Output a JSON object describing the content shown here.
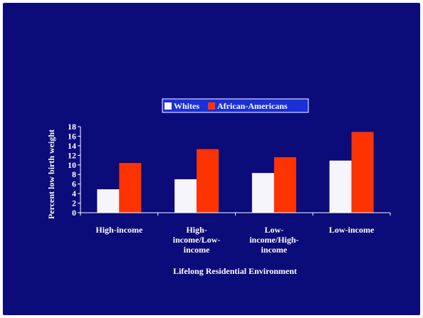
{
  "chart_data": {
    "type": "bar",
    "categories": [
      [
        "High-income"
      ],
      [
        "High-",
        "income/Low-",
        "income"
      ],
      [
        "Low-",
        "income/High-",
        "income"
      ],
      [
        "Low-income"
      ]
    ],
    "series": [
      {
        "name": "Whites",
        "values": [
          4.9,
          7.0,
          8.3,
          10.9
        ],
        "color": "#f5f5fa"
      },
      {
        "name": "African-Americans",
        "values": [
          10.4,
          13.3,
          11.6,
          16.9
        ],
        "color": "#ff3300"
      }
    ],
    "xlabel": "Lifelong Residential Environment",
    "ylabel": "Percent low birth weight",
    "ylim": [
      0,
      18
    ],
    "yticks": [
      0,
      2,
      4,
      6,
      8,
      10,
      12,
      14,
      16,
      18
    ],
    "legend_position": "top-center",
    "grid": false
  },
  "colors": {
    "background": "#0b0b7a",
    "axis": "#ffffff",
    "legend_fill": "#1a2fd6"
  }
}
